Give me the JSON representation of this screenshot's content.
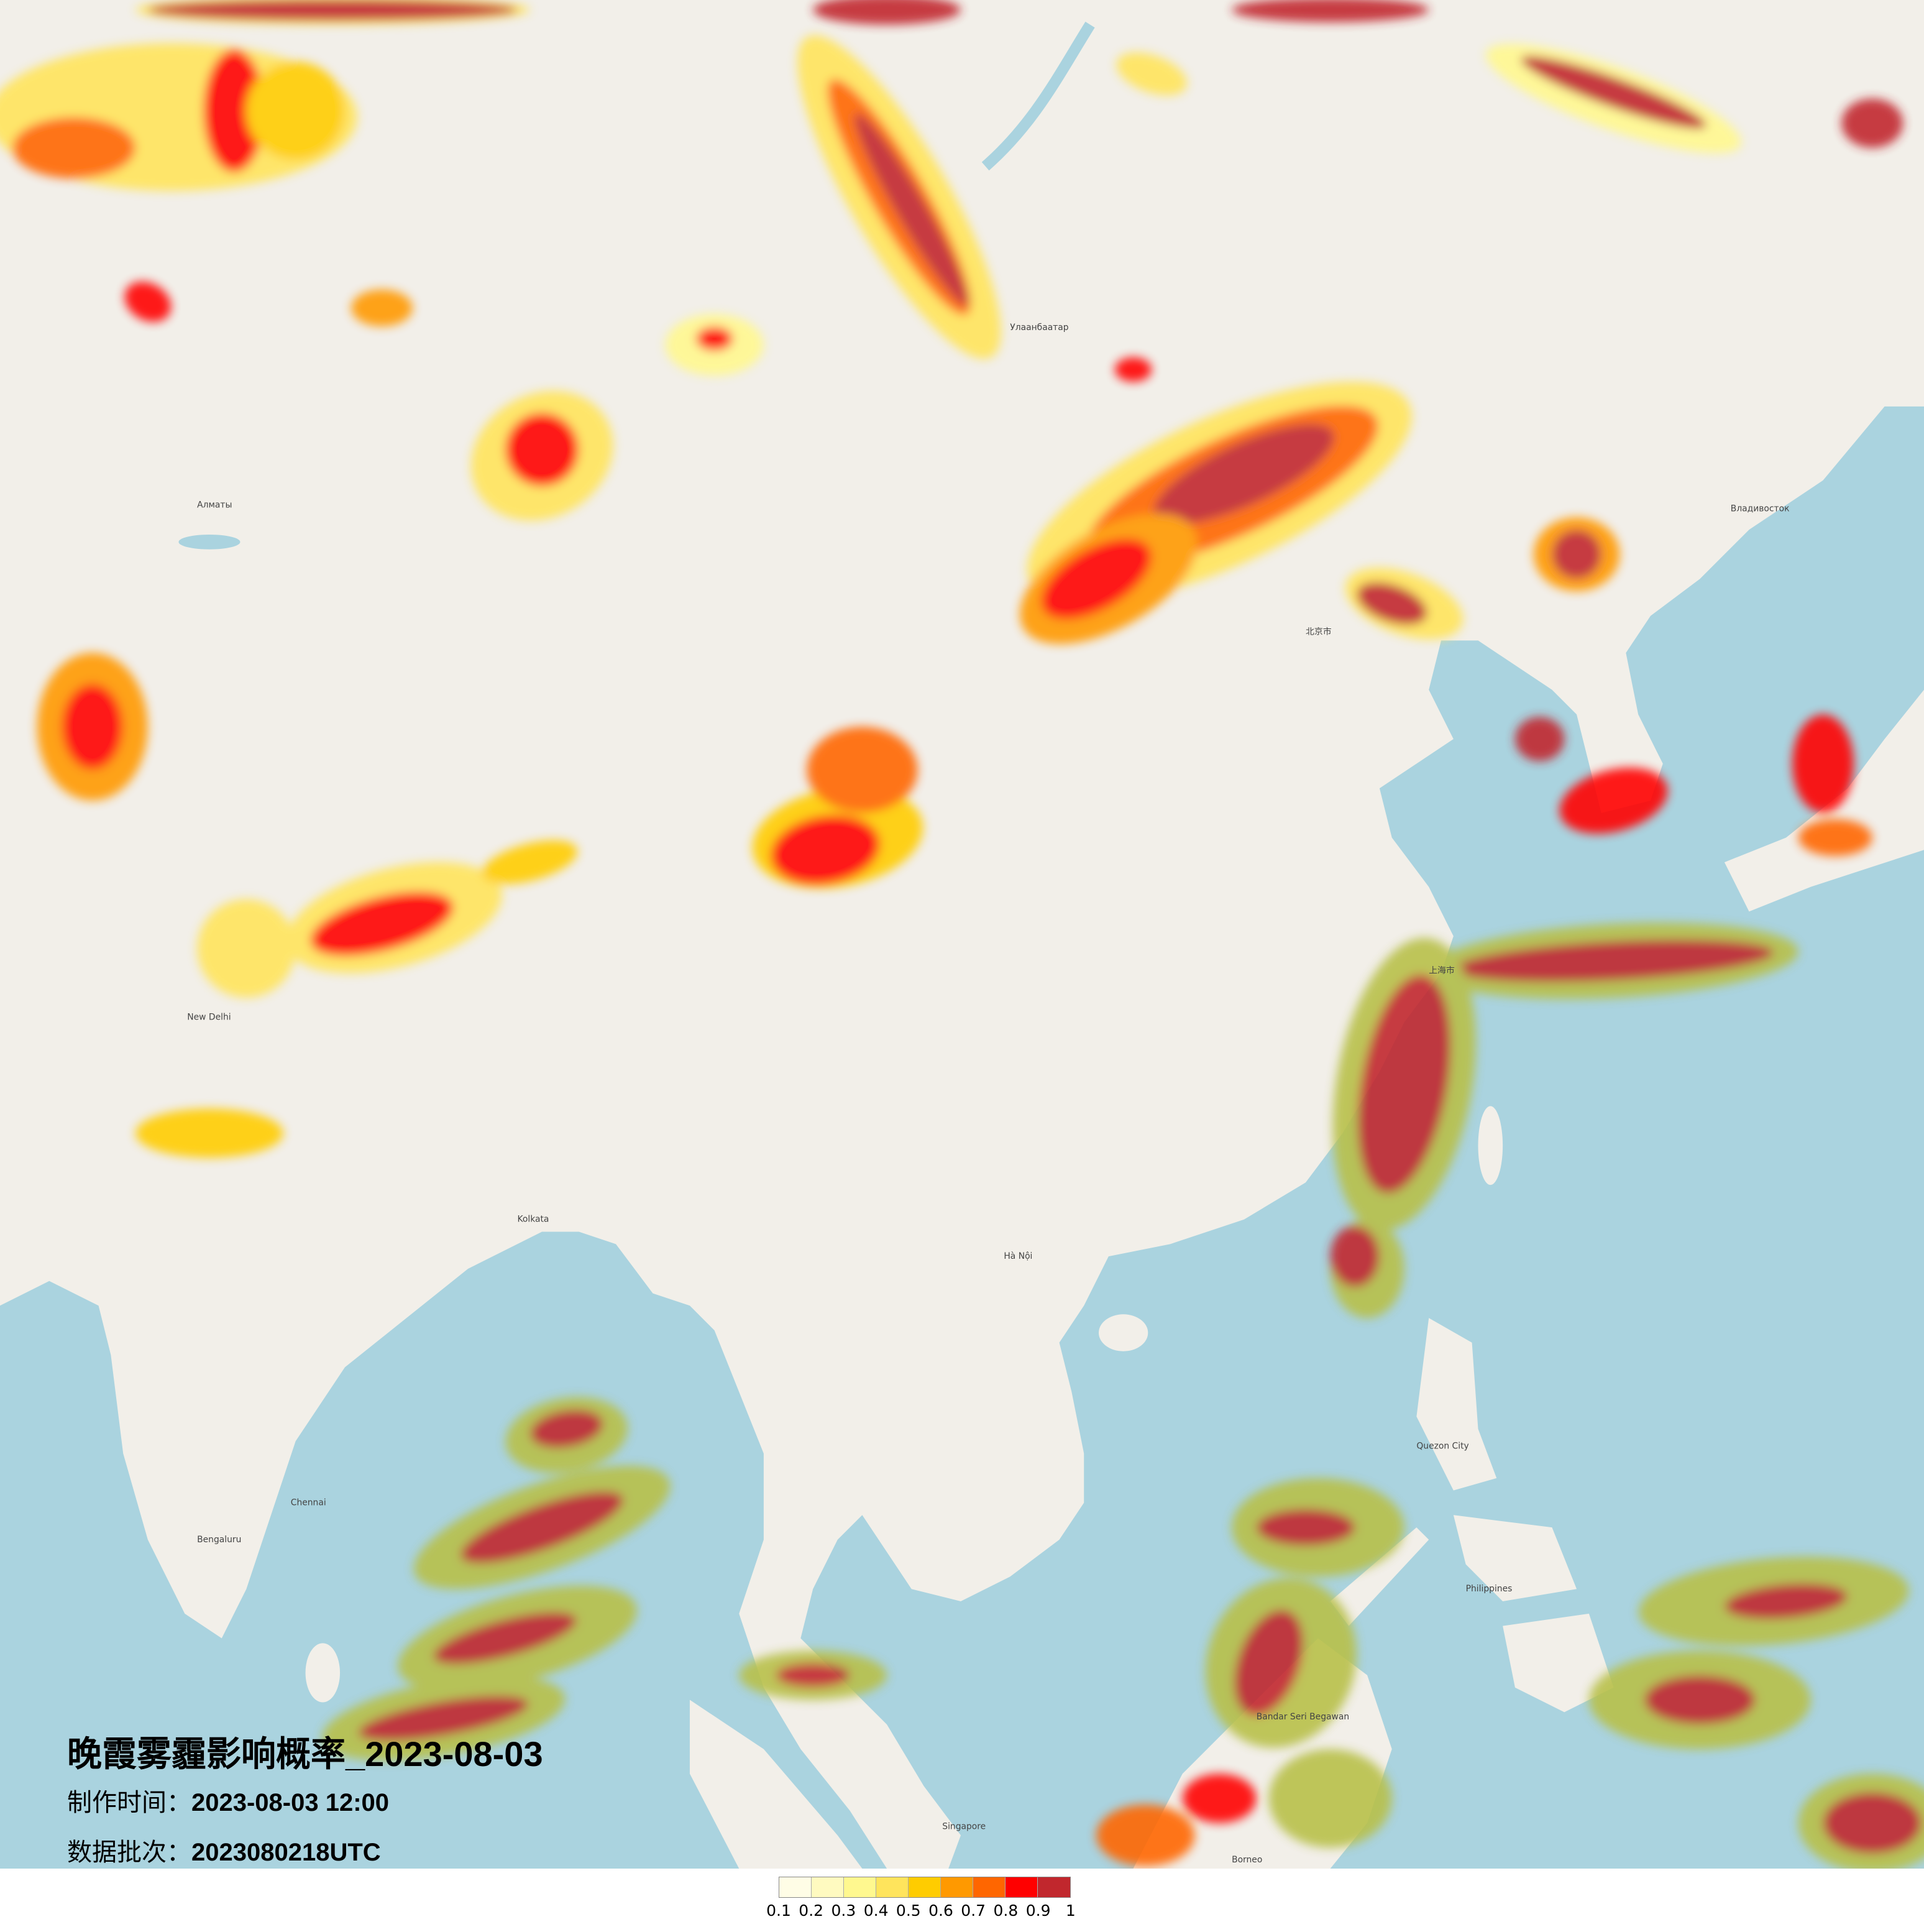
{
  "title": "晚霞雾霾影响概率_2023-08-03",
  "production_time": {
    "label": "制作时间：",
    "value": "2023-08-03 12:00"
  },
  "data_batch": {
    "label": "数据批次：",
    "value": "2023080218UTC"
  },
  "legend": {
    "colors": [
      "#fffde6",
      "#fffac0",
      "#fff88f",
      "#ffe45c",
      "#ffcc00",
      "#ff9900",
      "#ff6600",
      "#ff0000",
      "#c1272d"
    ],
    "labels": [
      "0.1",
      "0.2",
      "0.3",
      "0.4",
      "0.5",
      "0.6",
      "0.7",
      "0.8",
      "0.9",
      "1"
    ]
  },
  "map_colors": {
    "land": "#f2efe9",
    "sea": "#aad3df",
    "haze_ocean": "#b8c04a"
  },
  "cities": [
    {
      "name": "Алматы"
    },
    {
      "name": "Улаанбаатар"
    },
    {
      "name": "New Delhi"
    },
    {
      "name": "Kolkata"
    },
    {
      "name": "Chennai"
    },
    {
      "name": "Bengaluru"
    },
    {
      "name": "Hà Nội"
    },
    {
      "name": "Quezon City"
    },
    {
      "name": "Singapore"
    },
    {
      "name": "Borneo"
    },
    {
      "name": "Philippines"
    },
    {
      "name": "Владивосток"
    },
    {
      "name": "北京市"
    },
    {
      "name": "上海市"
    },
    {
      "name": "Bandar Seri Begawan"
    }
  ]
}
